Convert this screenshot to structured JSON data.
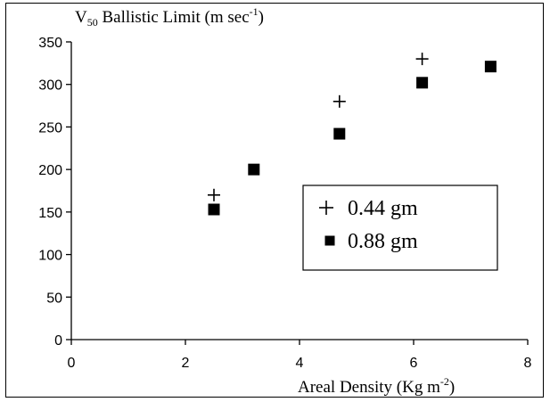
{
  "chart_data": {
    "type": "scatter",
    "title": "",
    "ylabel_parts": {
      "pre": "V",
      "sub": "50",
      "post": " Ballistic Limit (m sec",
      "sup": "-1",
      "end": ")"
    },
    "xlabel_parts": {
      "pre": "Areal Density (Kg m",
      "sup": "-2",
      "end": ")"
    },
    "xlim": [
      0,
      8
    ],
    "ylim": [
      0,
      350
    ],
    "x_ticks": [
      0,
      2,
      4,
      6,
      8
    ],
    "y_ticks": [
      0,
      50,
      100,
      150,
      200,
      250,
      300,
      350
    ],
    "grid": false,
    "legend_placement": "center-right",
    "series": [
      {
        "name": "0.44 gm",
        "marker": "plus",
        "color": "#000000",
        "points": [
          {
            "x": 2.5,
            "y": 170
          },
          {
            "x": 4.7,
            "y": 280
          },
          {
            "x": 6.15,
            "y": 330
          }
        ]
      },
      {
        "name": "0.88 gm",
        "marker": "square",
        "color": "#000000",
        "points": [
          {
            "x": 2.5,
            "y": 153
          },
          {
            "x": 3.2,
            "y": 200
          },
          {
            "x": 4.7,
            "y": 242
          },
          {
            "x": 6.15,
            "y": 302
          },
          {
            "x": 7.35,
            "y": 321
          }
        ]
      }
    ]
  }
}
